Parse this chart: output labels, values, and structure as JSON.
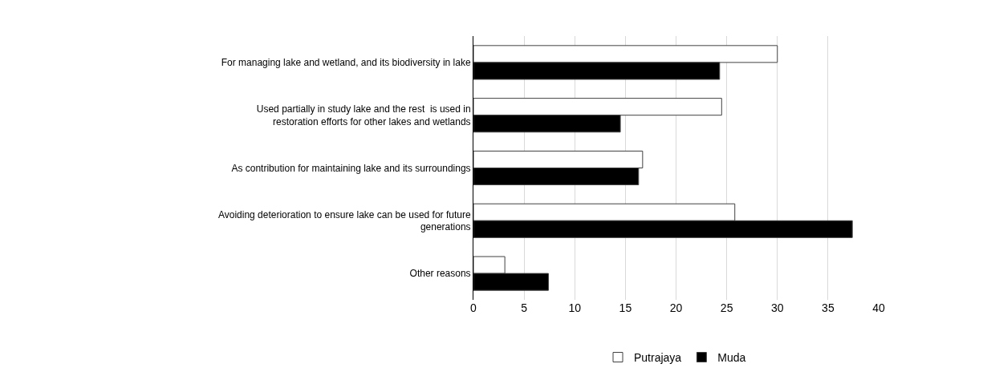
{
  "chart_data": {
    "type": "bar",
    "orientation": "horizontal",
    "categories": [
      "For managing lake and wetland, and its biodiversity in lake",
      "Used partially in study lake and the rest  is used in restoration efforts for other lakes and wetlands",
      "As contribution for maintaining lake and its surroundings",
      "Avoiding deterioration to ensure lake can be used for future generations",
      "Other reasons"
    ],
    "series": [
      {
        "name": "Putrajaya",
        "color": "#ffffff",
        "values": [
          30,
          24.5,
          16.7,
          25.8,
          3.1
        ]
      },
      {
        "name": "Muda",
        "color": "#000000",
        "values": [
          24.3,
          14.5,
          16.3,
          37.4,
          7.4
        ]
      }
    ],
    "xlim": [
      0,
      40
    ],
    "xticks": [
      0,
      5,
      10,
      15,
      20,
      25,
      30,
      35,
      40
    ],
    "grid": "x",
    "legend": "bottom"
  }
}
